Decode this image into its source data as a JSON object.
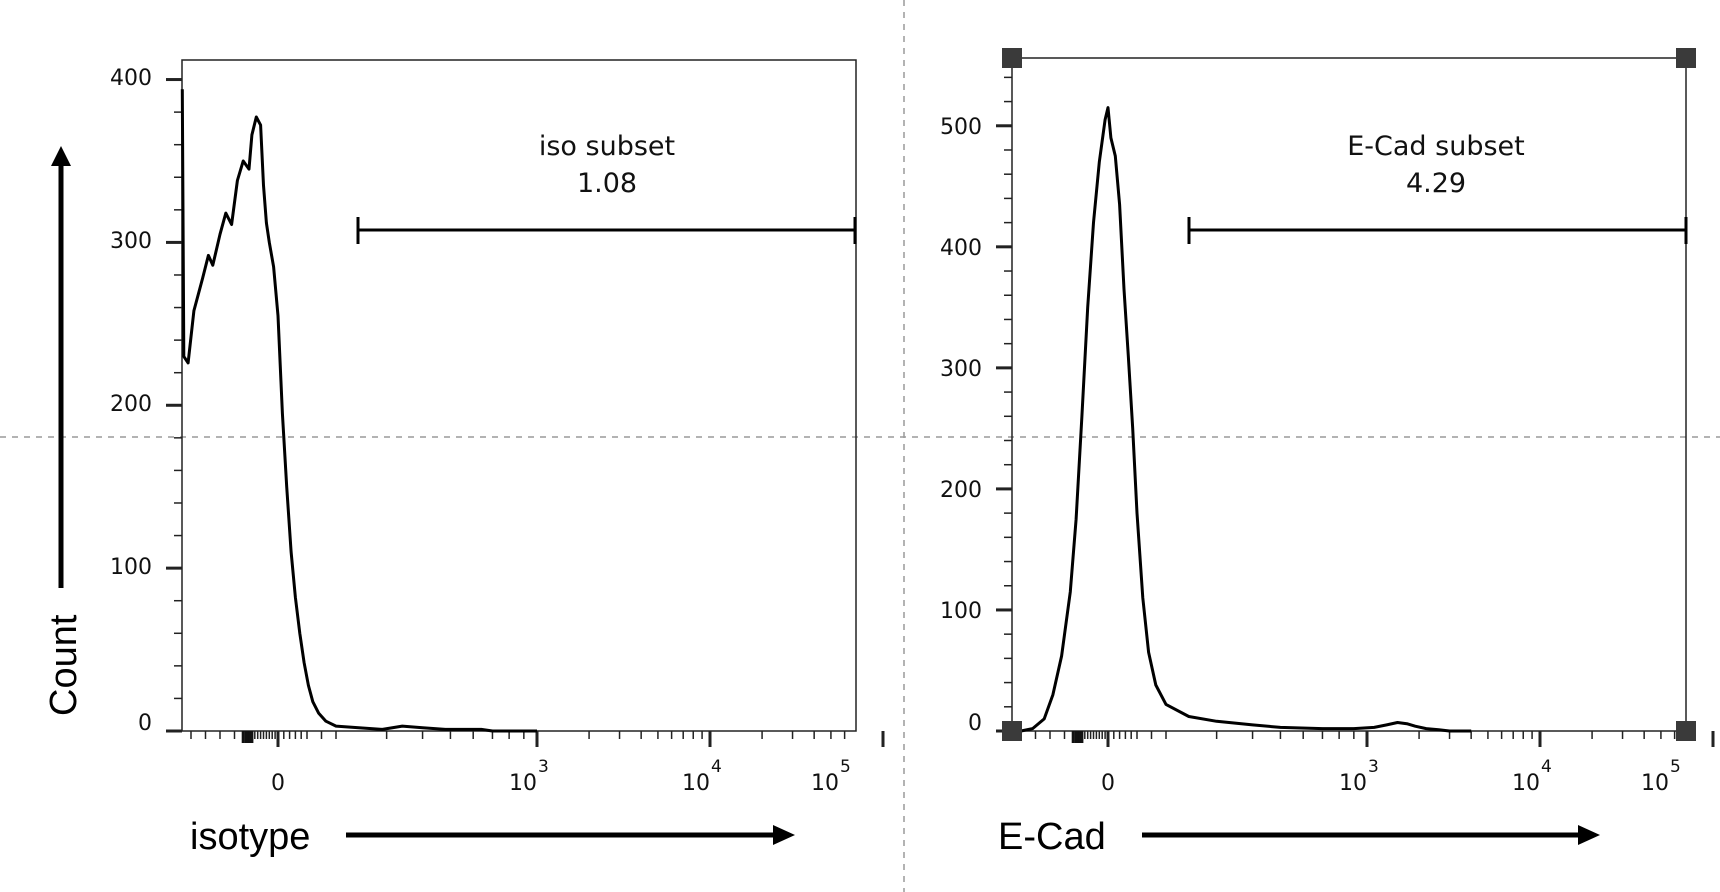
{
  "chart_data": [
    {
      "type": "line",
      "subtype": "flow-cytometry-histogram",
      "title": "",
      "xlabel": "isotype",
      "ylabel": "Count",
      "x_scale": "biexponential",
      "ylim": [
        0,
        412
      ],
      "yticks": [
        0,
        100,
        200,
        300,
        400
      ],
      "xticks": [
        {
          "value": 0,
          "label": "0"
        },
        {
          "value": 1000,
          "label": "10",
          "sup": "3"
        },
        {
          "value": 10000,
          "label": "10",
          "sup": "4"
        },
        {
          "value": 100000,
          "label": "10",
          "sup": "5"
        }
      ],
      "gate": {
        "name": "iso subset",
        "value": "1.08",
        "x_start": 200,
        "x_end": 262144
      },
      "series": [
        {
          "x": [
            -330,
            -325,
            -310,
            -290,
            -260,
            -240,
            -225,
            -200,
            -180,
            -160,
            -140,
            -120,
            -100,
            -90,
            -75,
            -60,
            -50,
            -40,
            -30,
            -15,
            0,
            15,
            30,
            45,
            60,
            75,
            90,
            105,
            120,
            140,
            165,
            200,
            240,
            290,
            340,
            400,
            480,
            560,
            640,
            700,
            800,
            1000
          ],
          "y": [
            394,
            230,
            226,
            258,
            278,
            292,
            286,
            305,
            318,
            311,
            338,
            350,
            345,
            366,
            377,
            372,
            335,
            312,
            300,
            285,
            255,
            195,
            150,
            110,
            82,
            60,
            42,
            28,
            18,
            11,
            6,
            3,
            2,
            1,
            3,
            2,
            1,
            1,
            1,
            0,
            0,
            0
          ]
        }
      ]
    },
    {
      "type": "line",
      "subtype": "flow-cytometry-histogram",
      "title": "",
      "xlabel": "E-Cad",
      "ylabel": "",
      "x_scale": "biexponential",
      "ylim": [
        0,
        556
      ],
      "yticks": [
        0,
        100,
        200,
        300,
        400,
        500
      ],
      "xticks": [
        {
          "value": 0,
          "label": "0"
        },
        {
          "value": 1000,
          "label": "10",
          "sup": "3"
        },
        {
          "value": 10000,
          "label": "10",
          "sup": "4"
        },
        {
          "value": 100000,
          "label": "10",
          "sup": "5"
        }
      ],
      "gate": {
        "name": "E-Cad subset",
        "value": "4.29",
        "x_start": 200,
        "x_end": 262144
      },
      "series": [
        {
          "x": [
            -330,
            -300,
            -260,
            -220,
            -190,
            -160,
            -130,
            -110,
            -90,
            -70,
            -50,
            -30,
            -10,
            0,
            10,
            25,
            40,
            55,
            70,
            85,
            100,
            120,
            140,
            165,
            200,
            240,
            300,
            400,
            500,
            700,
            900,
            1100,
            1300,
            1500,
            1700,
            1900,
            2200,
            2600,
            3000,
            4000
          ],
          "y": [
            0,
            0,
            2,
            10,
            30,
            62,
            115,
            175,
            260,
            350,
            420,
            470,
            505,
            515,
            490,
            475,
            435,
            365,
            310,
            250,
            180,
            110,
            65,
            38,
            22,
            12,
            8,
            5,
            3,
            2,
            2,
            3,
            5,
            7,
            6,
            4,
            2,
            1,
            0,
            0
          ]
        }
      ]
    }
  ],
  "panels": {
    "left": {
      "gate_name": "iso subset",
      "gate_value": "1.08",
      "xlabel": "isotype",
      "ylabel": "Count",
      "tick_labels_y": [
        "400",
        "300",
        "200",
        "100",
        "0"
      ],
      "tick_label_zero": "0",
      "tick_label_base": "10",
      "exp3": "3",
      "exp4": "4",
      "exp5": "5"
    },
    "right": {
      "gate_name": "E-Cad subset",
      "gate_value": "4.29",
      "xlabel": "E-Cad",
      "tick_labels_y": [
        "500",
        "400",
        "300",
        "200",
        "100",
        "0"
      ],
      "tick_label_zero": "0",
      "tick_label_base": "10",
      "exp3": "3",
      "exp4": "4",
      "exp5": "5"
    }
  },
  "colors": {
    "line": "#000000",
    "grid_dash": "#9a9a9a",
    "handle": "#3a3a3a"
  }
}
